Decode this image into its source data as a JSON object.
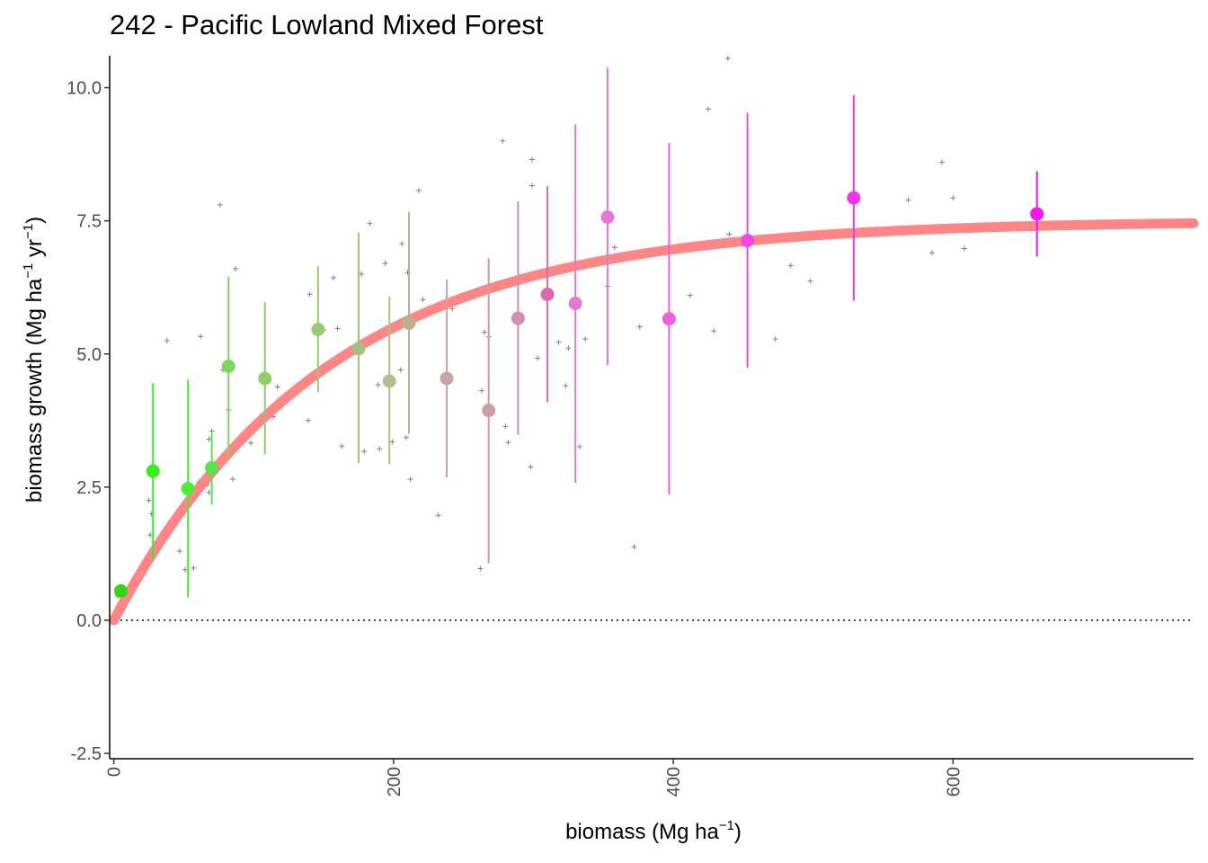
{
  "chart_data": {
    "type": "scatter",
    "title": "242 - Pacific Lowland Mixed Forest",
    "xlabel": {
      "base": "biomass (Mg ha",
      "sup": "−1",
      "end": ")"
    },
    "ylabel": {
      "base": "biomass growth (Mg ha",
      "sup1": "−1",
      "mid": " yr",
      "sup2": "−1",
      "end": ")"
    },
    "xlim": [
      -3,
      772
    ],
    "ylim": [
      -2.6,
      10.6
    ],
    "x_ticks": [
      0,
      200,
      400,
      600
    ],
    "x_tick_labels": [
      "0",
      "200",
      "400",
      "600"
    ],
    "y_ticks": [
      -2.5,
      0,
      2.5,
      5,
      7.5,
      10
    ],
    "y_tick_labels": [
      "-2.5",
      "0.0",
      "2.5",
      "5.0",
      "7.5",
      "10.0"
    ],
    "reference_line": {
      "y": 0,
      "style": "dotted"
    },
    "fitted_curve": {
      "formula": "a*(1-exp(-b*x))",
      "a": 7.5,
      "b": 0.0066,
      "color": "#ff7f7f"
    },
    "raw_points": [
      [
        3,
        0.45
      ],
      [
        14,
        0.65
      ],
      [
        26,
        1.6
      ],
      [
        25,
        2.25
      ],
      [
        27,
        2.0
      ],
      [
        38,
        5.25
      ],
      [
        47,
        1.3
      ],
      [
        51,
        0.95
      ],
      [
        57,
        0.98
      ],
      [
        61,
        2.6
      ],
      [
        62,
        5.33
      ],
      [
        67,
        2.55
      ],
      [
        68,
        2.4
      ],
      [
        68,
        3.4
      ],
      [
        70,
        3.55
      ],
      [
        76,
        7.8
      ],
      [
        78,
        4.7
      ],
      [
        82,
        3.95
      ],
      [
        85,
        2.65
      ],
      [
        87,
        6.6
      ],
      [
        98,
        3.33
      ],
      [
        114,
        3.82
      ],
      [
        117,
        4.38
      ],
      [
        139,
        3.75
      ],
      [
        140,
        6.12
      ],
      [
        150,
        5.45
      ],
      [
        157,
        6.43
      ],
      [
        160,
        5.48
      ],
      [
        163,
        3.27
      ],
      [
        177,
        6.5
      ],
      [
        179,
        3.17
      ],
      [
        183,
        7.45
      ],
      [
        189,
        4.42
      ],
      [
        190,
        3.22
      ],
      [
        194,
        6.7
      ],
      [
        199,
        3.35
      ],
      [
        205,
        4.7
      ],
      [
        206,
        7.07
      ],
      [
        209,
        3.43
      ],
      [
        210,
        6.53
      ],
      [
        212,
        2.65
      ],
      [
        218,
        8.07
      ],
      [
        221,
        6.02
      ],
      [
        232,
        1.97
      ],
      [
        242,
        5.85
      ],
      [
        262,
        0.97
      ],
      [
        263,
        4.31
      ],
      [
        265,
        5.41
      ],
      [
        268,
        5.32
      ],
      [
        278,
        9.0
      ],
      [
        280,
        3.64
      ],
      [
        282,
        3.34
      ],
      [
        296,
        6.41
      ],
      [
        298,
        2.88
      ],
      [
        299,
        8.65
      ],
      [
        299,
        8.16
      ],
      [
        303,
        4.92
      ],
      [
        318,
        5.22
      ],
      [
        323,
        4.4
      ],
      [
        325,
        5.11
      ],
      [
        333,
        3.26
      ],
      [
        337,
        5.28
      ],
      [
        353,
        6.27
      ],
      [
        358,
        7.0
      ],
      [
        372,
        1.38
      ],
      [
        376,
        5.51
      ],
      [
        412,
        6.1
      ],
      [
        425,
        9.6
      ],
      [
        429,
        5.43
      ],
      [
        439,
        10.55
      ],
      [
        440,
        7.25
      ],
      [
        473,
        5.28
      ],
      [
        484,
        6.66
      ],
      [
        498,
        6.37
      ],
      [
        568,
        7.89
      ],
      [
        585,
        6.9
      ],
      [
        592,
        8.6
      ],
      [
        600,
        7.93
      ],
      [
        608,
        6.98
      ]
    ],
    "series": [
      {
        "x": 5,
        "y": 0.55,
        "lo": 0.55,
        "hi": 0.55,
        "color": "#33d612"
      },
      {
        "x": 28,
        "y": 2.8,
        "lo": 1.15,
        "hi": 4.45,
        "color": "#33f01f"
      },
      {
        "x": 53,
        "y": 2.47,
        "lo": 0.43,
        "hi": 4.52,
        "color": "#4cec34"
      },
      {
        "x": 70,
        "y": 2.86,
        "lo": 2.17,
        "hi": 3.5,
        "color": "#5ae24a"
      },
      {
        "x": 82,
        "y": 4.77,
        "lo": 3.07,
        "hi": 6.45,
        "color": "#7cd858"
      },
      {
        "x": 108,
        "y": 4.54,
        "lo": 3.12,
        "hi": 5.97,
        "color": "#8ed066"
      },
      {
        "x": 146,
        "y": 5.46,
        "lo": 4.28,
        "hi": 6.65,
        "color": "#9cc878"
      },
      {
        "x": 175,
        "y": 5.1,
        "lo": 2.95,
        "hi": 7.28,
        "color": "#a4c07e"
      },
      {
        "x": 197,
        "y": 4.49,
        "lo": 2.93,
        "hi": 6.08,
        "color": "#b6bc8e"
      },
      {
        "x": 211,
        "y": 5.58,
        "lo": 3.5,
        "hi": 7.67,
        "color": "#bcb090"
      },
      {
        "x": 238,
        "y": 4.54,
        "lo": 2.68,
        "hi": 6.4,
        "color": "#c4a6a0"
      },
      {
        "x": 268,
        "y": 3.94,
        "lo": 1.07,
        "hi": 6.8,
        "color": "#cc9ea8"
      },
      {
        "x": 289,
        "y": 5.67,
        "lo": 3.48,
        "hi": 7.87,
        "color": "#d28eb0"
      },
      {
        "x": 310,
        "y": 6.12,
        "lo": 4.09,
        "hi": 8.15,
        "color": "#d86ab0"
      },
      {
        "x": 330,
        "y": 5.95,
        "lo": 2.58,
        "hi": 9.31,
        "color": "#e07cd0"
      },
      {
        "x": 353,
        "y": 7.57,
        "lo": 4.79,
        "hi": 10.38,
        "color": "#e478d4"
      },
      {
        "x": 397,
        "y": 5.66,
        "lo": 2.36,
        "hi": 8.96,
        "color": "#ec60e0"
      },
      {
        "x": 453,
        "y": 7.13,
        "lo": 4.74,
        "hi": 9.53,
        "color": "#f048e8"
      },
      {
        "x": 529,
        "y": 7.93,
        "lo": 6.0,
        "hi": 9.86,
        "color": "#f234ec"
      },
      {
        "x": 660,
        "y": 7.63,
        "lo": 6.83,
        "hi": 8.43,
        "color": "#f418f4"
      }
    ]
  }
}
